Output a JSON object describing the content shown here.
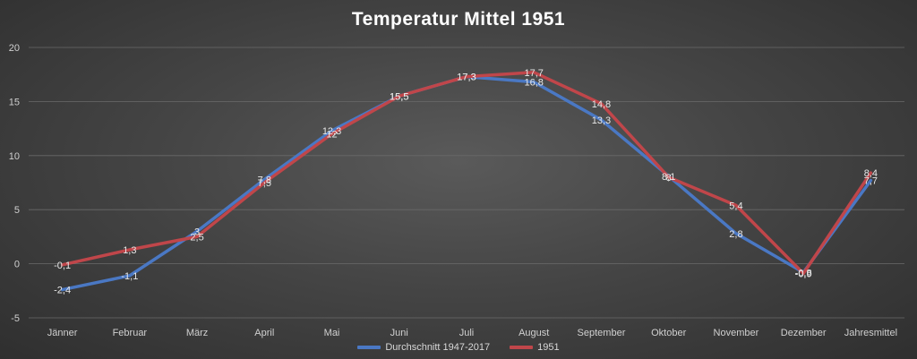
{
  "chart_data": {
    "type": "line",
    "title": "Temperatur Mittel 1951",
    "xlabel": "",
    "ylabel": "",
    "ylim": [
      -5,
      20
    ],
    "yticks": [
      "-5",
      "0",
      "5",
      "10",
      "15",
      "20"
    ],
    "grid": true,
    "legend_position": "bottom",
    "categories": [
      "Jänner",
      "Februar",
      "März",
      "April",
      "Mai",
      "Juni",
      "Juli",
      "August",
      "September",
      "Oktober",
      "November",
      "Dezember",
      "Jahresmittel"
    ],
    "series": [
      {
        "name": "Durchschnitt 1947-2017",
        "color": "#4a78c4",
        "values": [
          -2.4,
          -1.1,
          3.0,
          7.8,
          12.3,
          15.5,
          17.3,
          16.8,
          13.3,
          8.1,
          2.8,
          -0.8,
          7.7
        ],
        "labels": [
          "-2,4",
          "-1,1",
          "3",
          "7,8",
          "12,3",
          "15,5",
          "17,3",
          "16,8",
          "13,3",
          "8,1",
          "2,8",
          "-0,8",
          "7,7"
        ]
      },
      {
        "name": "1951",
        "color": "#c0464a",
        "values": [
          -0.1,
          1.3,
          2.5,
          7.5,
          12.0,
          15.5,
          17.3,
          17.7,
          14.8,
          8.0,
          5.4,
          -0.9,
          8.4
        ],
        "labels": [
          "-0,1",
          "1,3",
          "2,5",
          "7,5",
          "12",
          "15,5",
          "17,3",
          "17,7",
          "14,8",
          "8",
          "5,4",
          "-0,9",
          "8,4"
        ]
      }
    ]
  }
}
